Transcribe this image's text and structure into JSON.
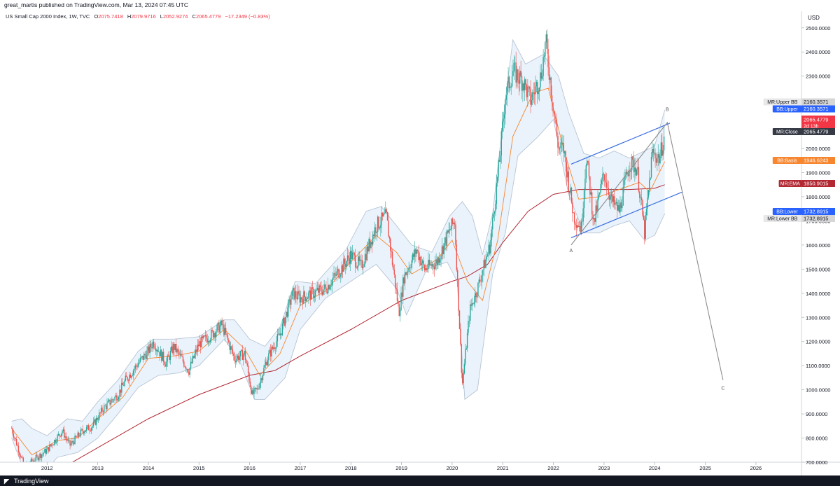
{
  "header": {
    "publish_text": "great_martis published on TradingView.com, Mar 13, 2024 07:45 UTC"
  },
  "legend": {
    "symbol": "US Small Cap 2000 Index, 1W, TVC",
    "open_label": "O",
    "open": "2075.7418",
    "high_label": "H",
    "high": "2079.9716",
    "low_label": "L",
    "low": "2052.9274",
    "close_label": "C",
    "close": "2065.4779",
    "change": "−17.2349 (−0.83%)"
  },
  "footer": {
    "brand": "TradingView",
    "logo_icon": "tradingview-logo-icon"
  },
  "colors": {
    "up": "#26a69a",
    "down": "#ef5350",
    "ema": "#b22833",
    "basis": "#f7862f",
    "band_fill": "#e3eff9",
    "band_line": "#b7c4d3",
    "channel": "#3b6fe0",
    "wave": "#8c8c8c"
  },
  "chart_data": {
    "type": "candlestick",
    "currency": "USD",
    "ylim": [
      700,
      2540
    ],
    "y_ticks": [
      "2500.0000",
      "2400.0000",
      "2300.0000",
      "2200.0000",
      "2100.0000",
      "2000.0000",
      "1900.0000",
      "1800.0000",
      "1700.0000",
      "1600.0000",
      "1500.0000",
      "1400.0000",
      "1300.0000",
      "1200.0000",
      "1100.0000",
      "1000.0000",
      "900.0000",
      "800.0000",
      "700.0000"
    ],
    "x_ticks": [
      {
        "label": "2012",
        "t": 2012
      },
      {
        "label": "2013",
        "t": 2013
      },
      {
        "label": "2014",
        "t": 2014
      },
      {
        "label": "2015",
        "t": 2015
      },
      {
        "label": "2016",
        "t": 2016
      },
      {
        "label": "2017",
        "t": 2017
      },
      {
        "label": "2018",
        "t": 2018
      },
      {
        "label": "2019",
        "t": 2019
      },
      {
        "label": "2020",
        "t": 2020
      },
      {
        "label": "2021",
        "t": 2021
      },
      {
        "label": "2022",
        "t": 2022
      },
      {
        "label": "2023",
        "t": 2023
      },
      {
        "label": "2024",
        "t": 2024
      },
      {
        "label": "2025",
        "t": 2025
      },
      {
        "label": "2026",
        "t": 2026
      }
    ],
    "close_keypoints": [
      [
        2011.3,
        840
      ],
      [
        2011.55,
        680
      ],
      [
        2011.8,
        720
      ],
      [
        2012.0,
        750
      ],
      [
        2012.3,
        830
      ],
      [
        2012.45,
        770
      ],
      [
        2012.7,
        830
      ],
      [
        2012.9,
        850
      ],
      [
        2013.1,
        920
      ],
      [
        2013.4,
        980
      ],
      [
        2013.55,
        1040
      ],
      [
        2013.8,
        1110
      ],
      [
        2014.0,
        1160
      ],
      [
        2014.1,
        1200
      ],
      [
        2014.35,
        1110
      ],
      [
        2014.5,
        1180
      ],
      [
        2014.8,
        1080
      ],
      [
        2015.0,
        1190
      ],
      [
        2015.25,
        1230
      ],
      [
        2015.45,
        1270
      ],
      [
        2015.7,
        1130
      ],
      [
        2015.9,
        1150
      ],
      [
        2016.05,
        980
      ],
      [
        2016.15,
        1000
      ],
      [
        2016.35,
        1130
      ],
      [
        2016.6,
        1230
      ],
      [
        2016.85,
        1400
      ],
      [
        2017.0,
        1380
      ],
      [
        2017.5,
        1420
      ],
      [
        2017.8,
        1500
      ],
      [
        2018.0,
        1560
      ],
      [
        2018.2,
        1510
      ],
      [
        2018.5,
        1680
      ],
      [
        2018.7,
        1720
      ],
      [
        2018.95,
        1320
      ],
      [
        2019.05,
        1470
      ],
      [
        2019.3,
        1580
      ],
      [
        2019.45,
        1500
      ],
      [
        2019.7,
        1530
      ],
      [
        2019.95,
        1660
      ],
      [
        2020.05,
        1700
      ],
      [
        2020.2,
        1020
      ],
      [
        2020.35,
        1330
      ],
      [
        2020.5,
        1420
      ],
      [
        2020.75,
        1600
      ],
      [
        2020.95,
        1980
      ],
      [
        2021.05,
        2220
      ],
      [
        2021.2,
        2320
      ],
      [
        2021.4,
        2280
      ],
      [
        2021.55,
        2200
      ],
      [
        2021.75,
        2300
      ],
      [
        2021.85,
        2440
      ],
      [
        2022.0,
        2170
      ],
      [
        2022.1,
        2000
      ],
      [
        2022.2,
        2000
      ],
      [
        2022.4,
        1720
      ],
      [
        2022.55,
        1670
      ],
      [
        2022.65,
        1970
      ],
      [
        2022.8,
        1690
      ],
      [
        2023.0,
        1900
      ],
      [
        2023.15,
        1780
      ],
      [
        2023.3,
        1740
      ],
      [
        2023.5,
        1940
      ],
      [
        2023.65,
        1920
      ],
      [
        2023.8,
        1650
      ],
      [
        2023.95,
        1980
      ],
      [
        2024.1,
        1960
      ],
      [
        2024.2,
        2065
      ]
    ],
    "overlays": {
      "ema_200": {
        "name": "MR:EMA",
        "value": "1850.9015",
        "points": [
          [
            2011.3,
            560
          ],
          [
            2012.0,
            640
          ],
          [
            2013.0,
            760
          ],
          [
            2014.0,
            880
          ],
          [
            2015.0,
            980
          ],
          [
            2016.0,
            1060
          ],
          [
            2016.5,
            1080
          ],
          [
            2017.0,
            1140
          ],
          [
            2018.0,
            1250
          ],
          [
            2019.0,
            1370
          ],
          [
            2020.0,
            1450
          ],
          [
            2020.3,
            1470
          ],
          [
            2020.7,
            1520
          ],
          [
            2021.0,
            1610
          ],
          [
            2021.5,
            1740
          ],
          [
            2022.0,
            1810
          ],
          [
            2022.5,
            1830
          ],
          [
            2023.0,
            1830
          ],
          [
            2023.5,
            1830
          ],
          [
            2024.0,
            1835
          ],
          [
            2024.2,
            1850
          ]
        ]
      },
      "bb_basis": {
        "name": "BB:Basis",
        "value": "1946.6243",
        "points": [
          [
            2011.3,
            840
          ],
          [
            2011.7,
            730
          ],
          [
            2012.2,
            790
          ],
          [
            2012.6,
            800
          ],
          [
            2013.0,
            880
          ],
          [
            2013.5,
            970
          ],
          [
            2014.0,
            1130
          ],
          [
            2014.5,
            1140
          ],
          [
            2015.0,
            1160
          ],
          [
            2015.5,
            1250
          ],
          [
            2015.9,
            1170
          ],
          [
            2016.2,
            1060
          ],
          [
            2016.6,
            1150
          ],
          [
            2017.0,
            1350
          ],
          [
            2017.5,
            1410
          ],
          [
            2018.0,
            1530
          ],
          [
            2018.5,
            1640
          ],
          [
            2018.9,
            1570
          ],
          [
            2019.2,
            1480
          ],
          [
            2019.7,
            1540
          ],
          [
            2020.0,
            1620
          ],
          [
            2020.3,
            1450
          ],
          [
            2020.6,
            1370
          ],
          [
            2020.9,
            1620
          ],
          [
            2021.2,
            2050
          ],
          [
            2021.6,
            2230
          ],
          [
            2021.9,
            2250
          ],
          [
            2022.2,
            2000
          ],
          [
            2022.5,
            1790
          ],
          [
            2022.9,
            1800
          ],
          [
            2023.3,
            1830
          ],
          [
            2023.7,
            1860
          ],
          [
            2023.9,
            1820
          ],
          [
            2024.2,
            1946
          ]
        ]
      },
      "bb_upper": {
        "name": "BB:Upper",
        "value": "2160.3571",
        "points": [
          [
            2011.3,
            870
          ],
          [
            2011.5,
            880
          ],
          [
            2011.7,
            840
          ],
          [
            2012.0,
            810
          ],
          [
            2012.4,
            880
          ],
          [
            2012.7,
            870
          ],
          [
            2013.0,
            950
          ],
          [
            2013.4,
            1040
          ],
          [
            2013.8,
            1160
          ],
          [
            2014.1,
            1210
          ],
          [
            2014.5,
            1210
          ],
          [
            2015.0,
            1220
          ],
          [
            2015.5,
            1290
          ],
          [
            2015.7,
            1290
          ],
          [
            2016.0,
            1210
          ],
          [
            2016.3,
            1180
          ],
          [
            2016.6,
            1260
          ],
          [
            2016.9,
            1450
          ],
          [
            2017.3,
            1440
          ],
          [
            2017.9,
            1580
          ],
          [
            2018.3,
            1740
          ],
          [
            2018.6,
            1760
          ],
          [
            2018.9,
            1680
          ],
          [
            2019.2,
            1600
          ],
          [
            2019.6,
            1570
          ],
          [
            2019.95,
            1720
          ],
          [
            2020.2,
            1780
          ],
          [
            2020.4,
            1720
          ],
          [
            2020.6,
            1560
          ],
          [
            2020.8,
            1730
          ],
          [
            2021.05,
            2200
          ],
          [
            2021.2,
            2450
          ],
          [
            2021.45,
            2350
          ],
          [
            2021.8,
            2390
          ],
          [
            2022.1,
            2300
          ],
          [
            2022.3,
            2150
          ],
          [
            2022.6,
            1980
          ],
          [
            2022.9,
            1960
          ],
          [
            2023.2,
            1990
          ],
          [
            2023.5,
            1960
          ],
          [
            2023.8,
            1990
          ],
          [
            2024.0,
            2010
          ],
          [
            2024.2,
            2160
          ]
        ]
      },
      "bb_lower": {
        "name": "BB:Lower",
        "value": "1732.8915",
        "points": [
          [
            2011.3,
            800
          ],
          [
            2011.5,
            690
          ],
          [
            2011.8,
            620
          ],
          [
            2012.2,
            720
          ],
          [
            2012.6,
            740
          ],
          [
            2013.0,
            800
          ],
          [
            2013.4,
            900
          ],
          [
            2013.8,
            1010
          ],
          [
            2014.2,
            1060
          ],
          [
            2014.6,
            1070
          ],
          [
            2015.0,
            1100
          ],
          [
            2015.5,
            1210
          ],
          [
            2015.8,
            1120
          ],
          [
            2016.1,
            960
          ],
          [
            2016.3,
            960
          ],
          [
            2016.7,
            1050
          ],
          [
            2017.0,
            1250
          ],
          [
            2017.5,
            1380
          ],
          [
            2018.0,
            1450
          ],
          [
            2018.5,
            1520
          ],
          [
            2018.9,
            1420
          ],
          [
            2019.1,
            1310
          ],
          [
            2019.5,
            1500
          ],
          [
            2019.9,
            1530
          ],
          [
            2020.1,
            1450
          ],
          [
            2020.25,
            960
          ],
          [
            2020.5,
            1000
          ],
          [
            2020.8,
            1480
          ],
          [
            2021.05,
            1650
          ],
          [
            2021.3,
            1970
          ],
          [
            2021.7,
            2050
          ],
          [
            2022.0,
            2120
          ],
          [
            2022.3,
            1810
          ],
          [
            2022.6,
            1650
          ],
          [
            2022.9,
            1650
          ],
          [
            2023.2,
            1680
          ],
          [
            2023.5,
            1700
          ],
          [
            2023.8,
            1620
          ],
          [
            2024.0,
            1640
          ],
          [
            2024.2,
            1730
          ]
        ]
      }
    },
    "drawings": {
      "channel": [
        [
          [
            2022.35,
            1935
          ],
          [
            2024.3,
            2105
          ]
        ],
        [
          [
            2022.35,
            1630
          ],
          [
            2024.55,
            1820
          ]
        ]
      ],
      "wave": [
        [
          2022.35,
          1600
        ],
        [
          2024.25,
          2108
        ],
        [
          2025.35,
          1040
        ]
      ],
      "labels": [
        {
          "text": "A",
          "t": 2022.35,
          "v": 1570
        },
        {
          "text": "B",
          "t": 2024.25,
          "v": 2155
        },
        {
          "text": "C",
          "t": 2025.35,
          "v": 1000
        }
      ]
    },
    "price_labels": [
      {
        "name": "MR:Upper BB",
        "value": "2160.3571",
        "color": "#9ea3ad",
        "tag": "#e8e8e8"
      },
      {
        "name": "BB:Upper",
        "value": "2160.3571",
        "color": "#2962ff",
        "tag": "#2962ff"
      },
      {
        "name": "",
        "value": "2065.4779",
        "sub": "2d 13h",
        "color": "#f23645",
        "tag": ""
      },
      {
        "name": "MR:Close",
        "value": "2065.4779",
        "color": "#363a45",
        "tag": "#363a45"
      },
      {
        "name": "BB:Basis",
        "value": "1946.6243",
        "color": "#f7862f",
        "tag": "#f7862f"
      },
      {
        "name": "MR:EMA",
        "value": "1850.9015",
        "color": "#b22833",
        "tag": "#b22833"
      },
      {
        "name": "BB:Lower",
        "value": "1732.8915",
        "color": "#2962ff",
        "tag": "#2962ff"
      },
      {
        "name": "MR:Lower BB",
        "value": "1732.8915",
        "color": "#9ea3ad",
        "tag": "#e8e8e8"
      }
    ]
  }
}
